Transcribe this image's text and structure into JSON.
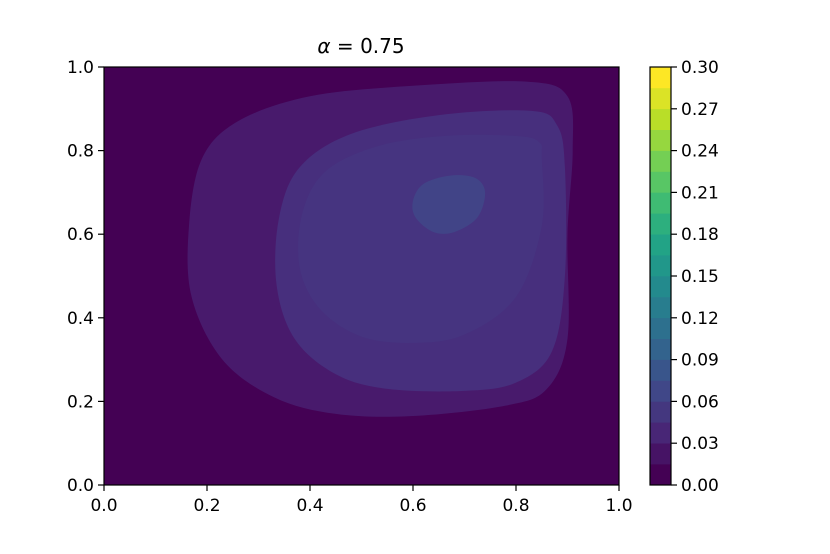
{
  "chart_data": {
    "type": "heatmap",
    "subtype": "filled-contour",
    "title": "α = 0.75",
    "title_parts": {
      "symbol": "α",
      "equals": " = ",
      "value": "0.75"
    },
    "xlabel": "",
    "ylabel": "",
    "xlim": [
      0.0,
      1.0
    ],
    "ylim": [
      0.0,
      1.0
    ],
    "xticks": [
      "0.0",
      "0.2",
      "0.4",
      "0.6",
      "0.8",
      "1.0"
    ],
    "yticks": [
      "0.0",
      "0.2",
      "0.4",
      "0.6",
      "0.8",
      "1.0"
    ],
    "grid": false,
    "colormap": "viridis",
    "colorbar": {
      "range": [
        0.0,
        0.3
      ],
      "levels": [
        0.0,
        0.015,
        0.03,
        0.045,
        0.06,
        0.075,
        0.09,
        0.105,
        0.12,
        0.135,
        0.15,
        0.165,
        0.18,
        0.195,
        0.21,
        0.225,
        0.24,
        0.255,
        0.27,
        0.285,
        0.3
      ],
      "ticks": [
        "0.00",
        "0.03",
        "0.06",
        "0.09",
        "0.12",
        "0.15",
        "0.18",
        "0.21",
        "0.24",
        "0.27",
        "0.30"
      ]
    },
    "contours": [
      {
        "name": "level-0.000-0.015",
        "level_min": 0.0,
        "level_max": 0.015,
        "color": "#440154",
        "points": [
          [
            0,
            0
          ],
          [
            1,
            0
          ],
          [
            1,
            1
          ],
          [
            0,
            1
          ]
        ]
      },
      {
        "name": "level-0.015-0.030",
        "level_min": 0.015,
        "level_max": 0.03,
        "color": "#481a6c",
        "points": [
          [
            0.9,
            0.6
          ],
          [
            0.9,
            0.35
          ],
          [
            0.86,
            0.23
          ],
          [
            0.78,
            0.19
          ],
          [
            0.6,
            0.165
          ],
          [
            0.45,
            0.17
          ],
          [
            0.33,
            0.21
          ],
          [
            0.23,
            0.3
          ],
          [
            0.17,
            0.45
          ],
          [
            0.165,
            0.62
          ],
          [
            0.19,
            0.78
          ],
          [
            0.26,
            0.87
          ],
          [
            0.4,
            0.93
          ],
          [
            0.6,
            0.955
          ],
          [
            0.82,
            0.965
          ],
          [
            0.9,
            0.93
          ],
          [
            0.91,
            0.8
          ]
        ]
      },
      {
        "name": "level-0.030-0.045",
        "level_min": 0.03,
        "level_max": 0.045,
        "color": "#472f7d",
        "points": [
          [
            0.895,
            0.76
          ],
          [
            0.895,
            0.5
          ],
          [
            0.87,
            0.32
          ],
          [
            0.8,
            0.245
          ],
          [
            0.7,
            0.225
          ],
          [
            0.55,
            0.23
          ],
          [
            0.45,
            0.265
          ],
          [
            0.37,
            0.35
          ],
          [
            0.335,
            0.48
          ],
          [
            0.34,
            0.64
          ],
          [
            0.38,
            0.76
          ],
          [
            0.48,
            0.84
          ],
          [
            0.65,
            0.885
          ],
          [
            0.83,
            0.895
          ],
          [
            0.88,
            0.86
          ]
        ]
      },
      {
        "name": "level-0.045-0.060",
        "level_min": 0.045,
        "level_max": 0.06,
        "color": "#463480",
        "points": [
          [
            0.85,
            0.78
          ],
          [
            0.85,
            0.62
          ],
          [
            0.8,
            0.45
          ],
          [
            0.7,
            0.36
          ],
          [
            0.6,
            0.34
          ],
          [
            0.5,
            0.355
          ],
          [
            0.42,
            0.42
          ],
          [
            0.38,
            0.52
          ],
          [
            0.385,
            0.65
          ],
          [
            0.43,
            0.75
          ],
          [
            0.53,
            0.81
          ],
          [
            0.66,
            0.835
          ],
          [
            0.8,
            0.835
          ],
          [
            0.845,
            0.82
          ]
        ]
      },
      {
        "name": "level-0.060-0.075",
        "level_min": 0.06,
        "level_max": 0.075,
        "color": "#414487",
        "points": [
          [
            0.74,
            0.7
          ],
          [
            0.725,
            0.64
          ],
          [
            0.68,
            0.605
          ],
          [
            0.64,
            0.605
          ],
          [
            0.605,
            0.64
          ],
          [
            0.6,
            0.68
          ],
          [
            0.62,
            0.72
          ],
          [
            0.67,
            0.74
          ],
          [
            0.72,
            0.735
          ]
        ]
      }
    ]
  }
}
